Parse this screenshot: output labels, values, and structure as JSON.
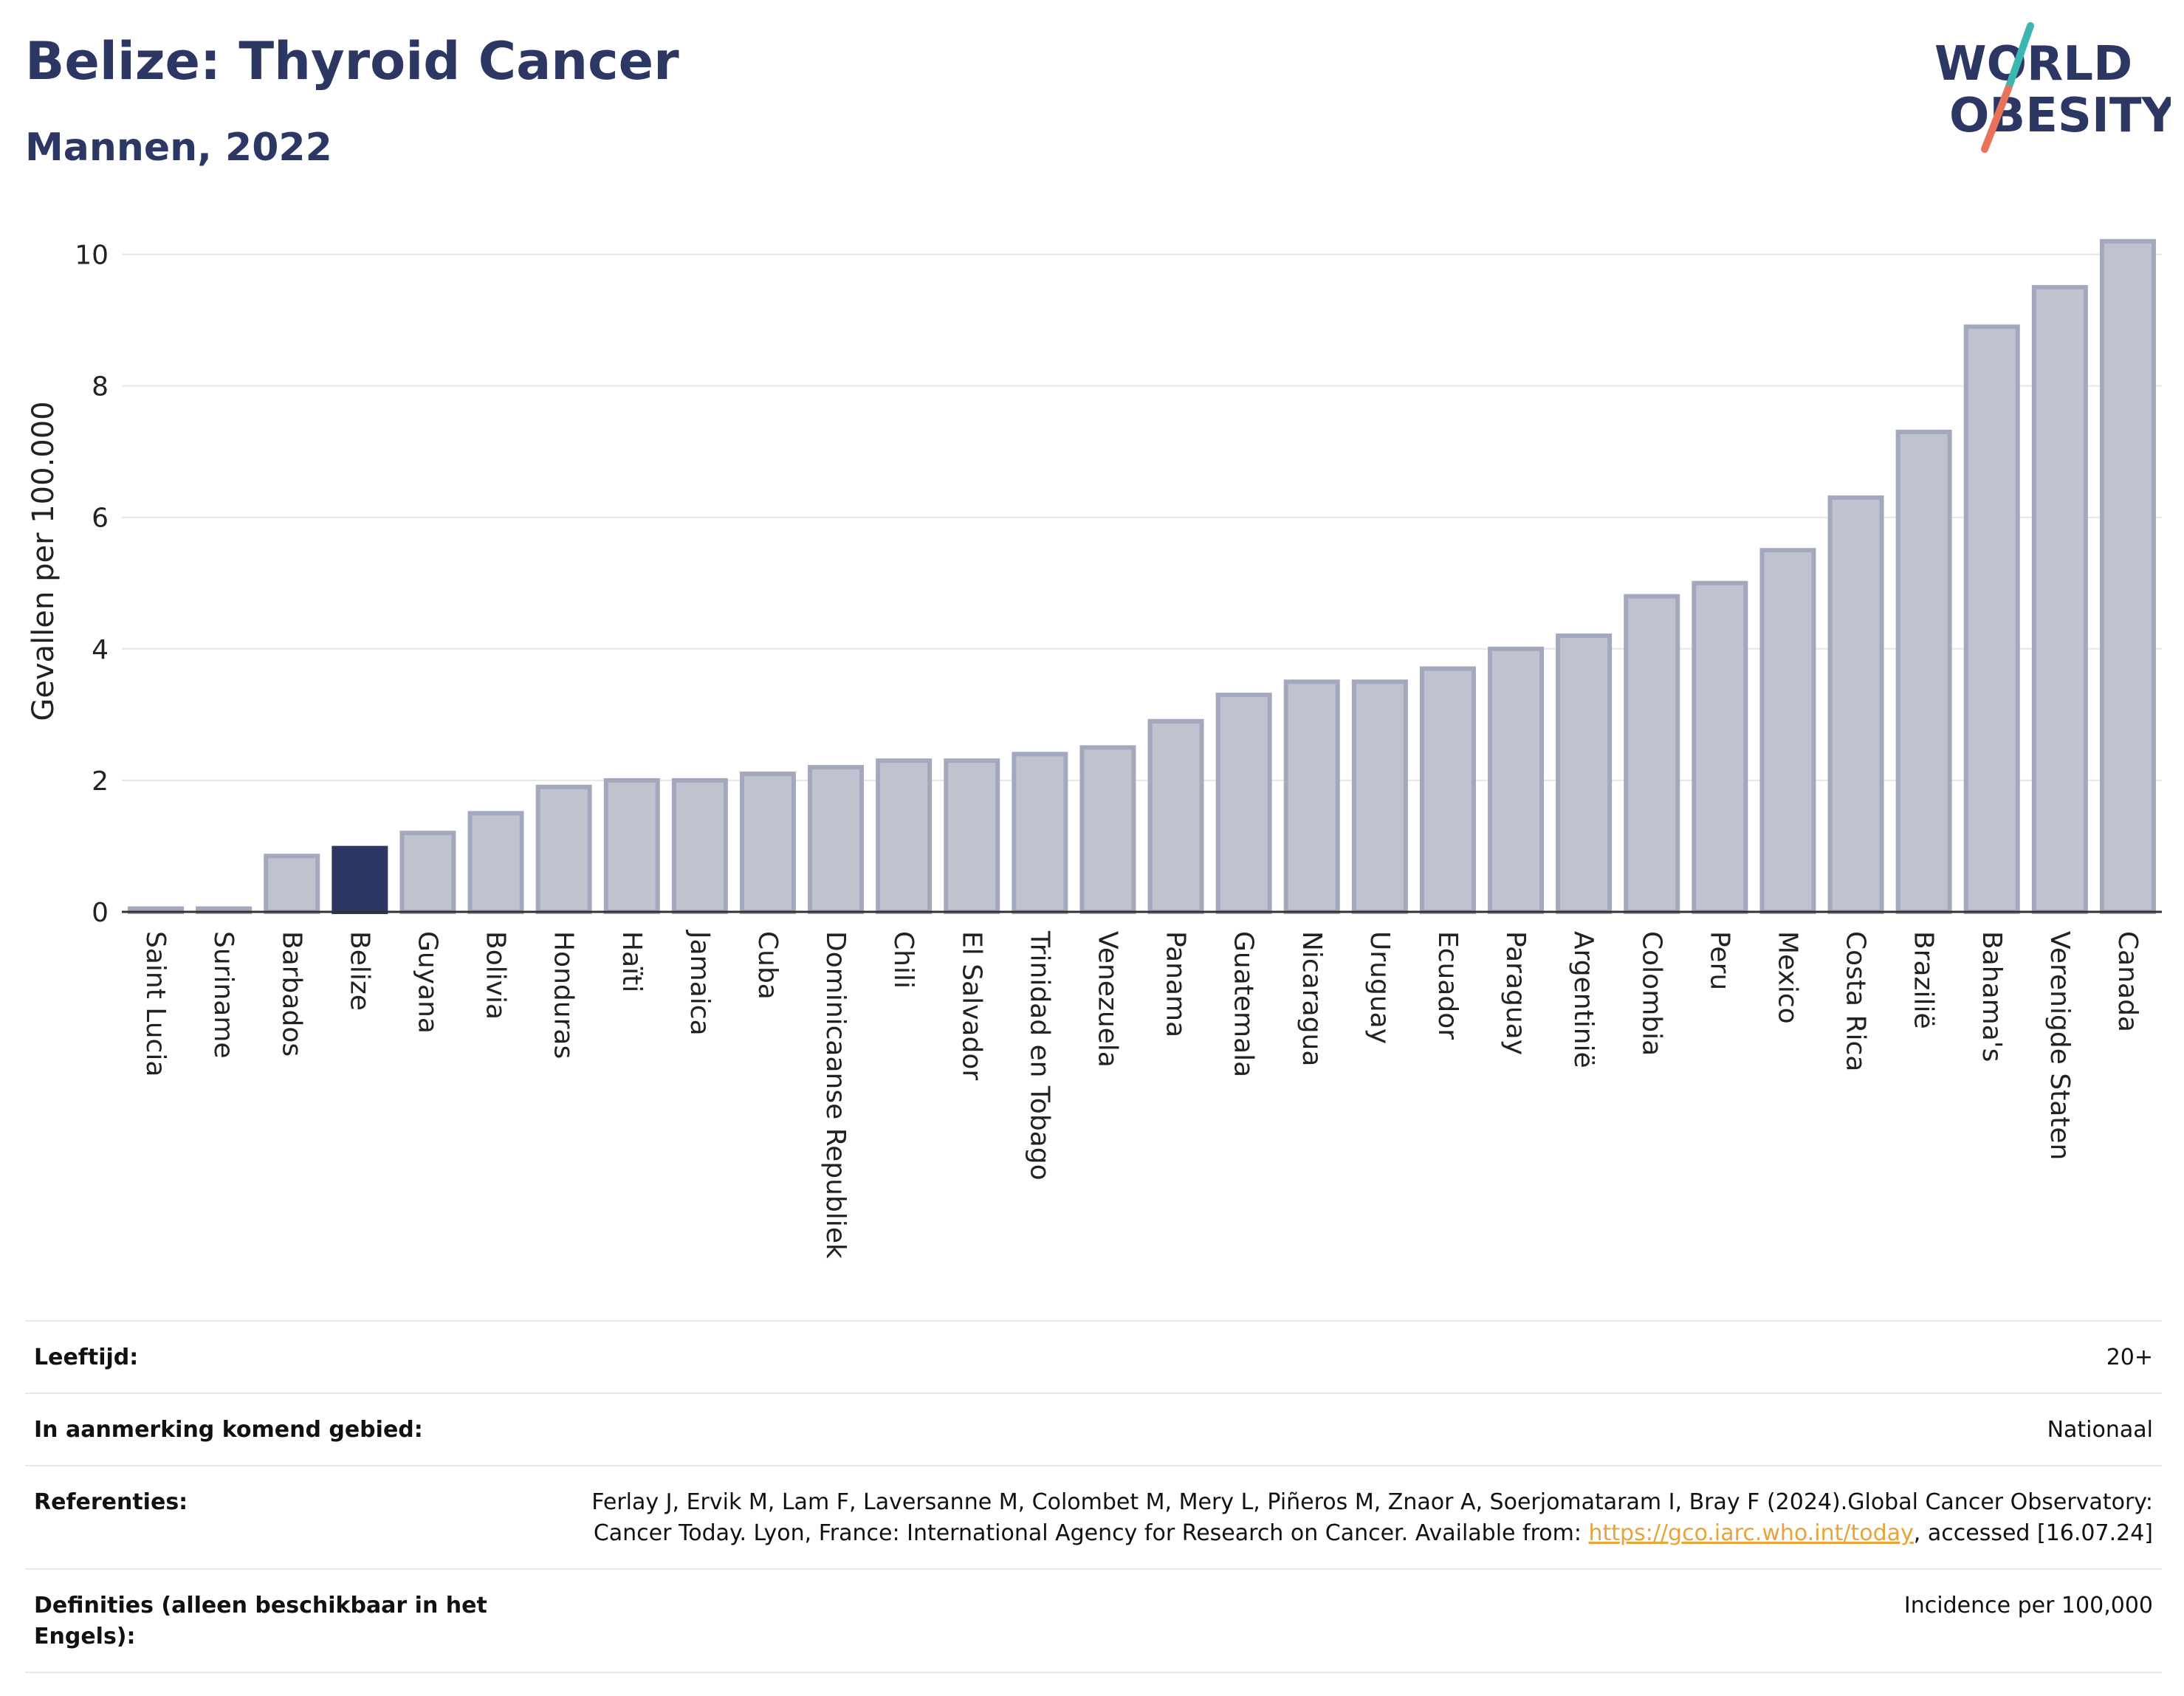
{
  "header": {
    "title": "Belize: Thyroid Cancer",
    "subtitle": "Mannen, 2022"
  },
  "logo": {
    "line1": "WORLD",
    "line2": "OBESITY",
    "accent_colors": [
      "#3bb6b0",
      "#e8735a"
    ]
  },
  "colors": {
    "highlight": "#2c3764",
    "bar": "#bfc3d0",
    "bar_border": "#a3a8bd",
    "text_dark": "#2c3764"
  },
  "chart_data": {
    "type": "bar",
    "ylabel": "Gevallen per 100.000",
    "ylim": [
      0,
      10.5
    ],
    "yticks": [
      0,
      2,
      4,
      6,
      8,
      10
    ],
    "grid": true,
    "highlight": "Belize",
    "categories": [
      "Saint Lucia",
      "Suriname",
      "Barbados",
      "Belize",
      "Guyana",
      "Bolivia",
      "Honduras",
      "Haïti",
      "Jamaica",
      "Cuba",
      "Dominicaanse Republiek",
      "Chili",
      "El Salvador",
      "Trinidad en Tobago",
      "Venezuela",
      "Panama",
      "Guatemala",
      "Nicaragua",
      "Uruguay",
      "Ecuador",
      "Paraguay",
      "Argentinië",
      "Colombia",
      "Peru",
      "Mexico",
      "Costa Rica",
      "Brazilië",
      "Bahama's",
      "Verenigde Staten",
      "Canada"
    ],
    "values": [
      0.05,
      0.05,
      0.85,
      0.97,
      1.2,
      1.5,
      1.9,
      2.0,
      2.0,
      2.1,
      2.2,
      2.3,
      2.3,
      2.4,
      2.5,
      2.9,
      3.3,
      3.5,
      3.5,
      3.7,
      4.0,
      4.2,
      4.8,
      5.0,
      5.5,
      6.3,
      7.3,
      8.9,
      9.5,
      10.2
    ]
  },
  "meta": {
    "age_label": "Leeftijd:",
    "age_value": "20+",
    "area_label": "In aanmerking komend gebied:",
    "area_value": "Nationaal",
    "ref_label": "Referenties:",
    "ref_text_1": "Ferlay J, Ervik M, Lam F, Laversanne M, Colombet M, Mery L, Piñeros M, Znaor A, Soerjomataram I, Bray F (2024).Global Cancer Observatory: Cancer Today. Lyon, France: International Agency for Research on Cancer. Available from: ",
    "ref_link": "https://gco.iarc.who.int/today",
    "ref_text_2": ", accessed [16.07.24]",
    "def_label": "Definities (alleen beschikbaar in het Engels):",
    "def_value": "Incidence per 100,000"
  }
}
